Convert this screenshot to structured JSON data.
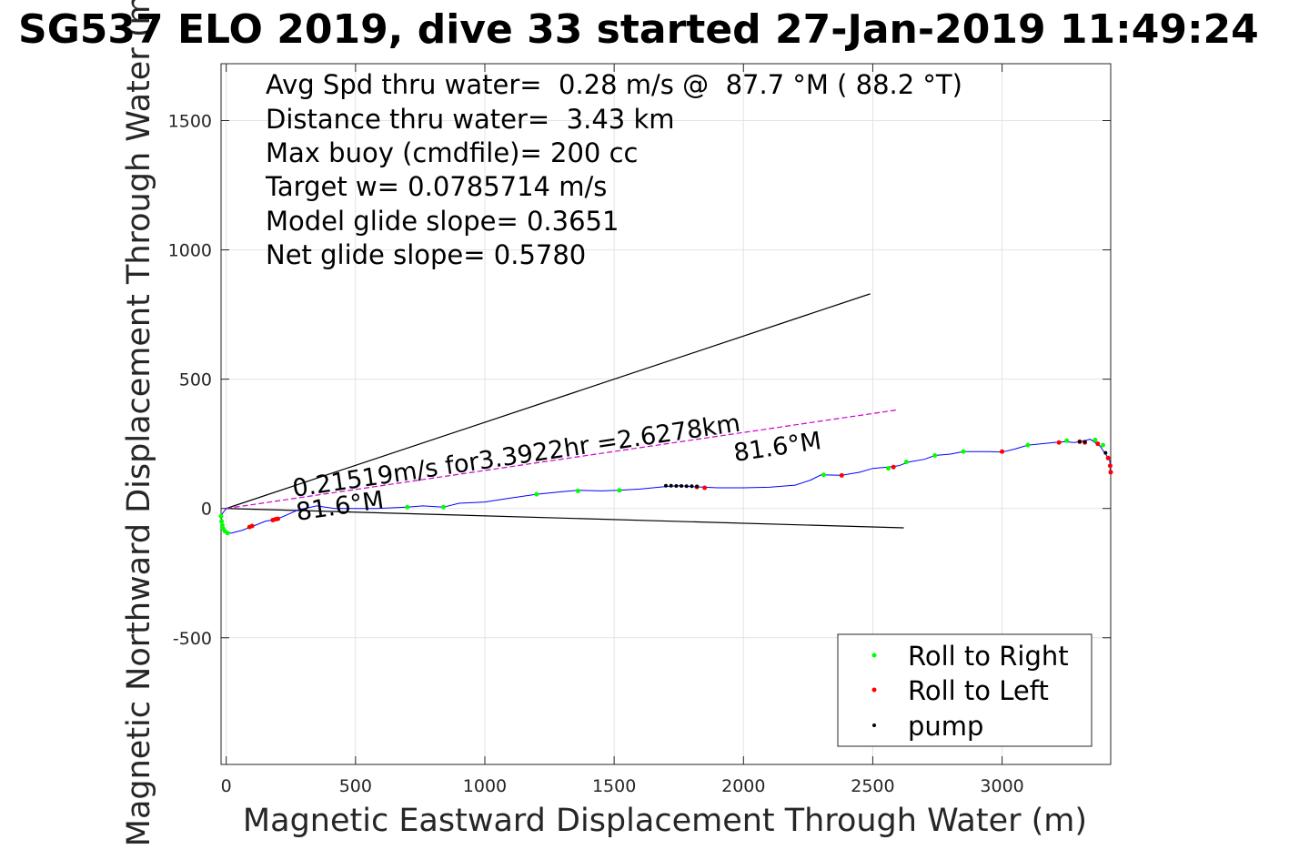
{
  "chart_data": {
    "type": "scatter",
    "title": "SG537 ELO 2019, dive 33 started 27-Jan-2019 11:49:24",
    "xlabel": "Magnetic Eastward Displacement Through Water (m)",
    "ylabel": "Magnetic Northward Displacement Through Water (m)",
    "xlim": [
      -20,
      3420
    ],
    "ylim": [
      -990,
      1720
    ],
    "xticks": [
      0,
      500,
      1000,
      1500,
      2000,
      2500,
      3000
    ],
    "yticks": [
      -500,
      0,
      500,
      1000,
      1500
    ],
    "grid": true,
    "info_lines": [
      "Avg Spd thru water=  0.28 m/s @  87.7 °M ( 88.2 °T)",
      "Distance thru water=  3.43 km",
      "Max buoy (cmdfile)= 200 cc",
      "Target w= 0.0785714 m/s",
      "Model glide slope= 0.3651",
      "Net glide slope= 0.5780"
    ],
    "annotations": {
      "current_label": "0.21519m/s for3.3922hr =2.6278km",
      "heading_label_1": "81.6°M",
      "heading_label_2": "81.6°M"
    },
    "lines": [
      {
        "role": "heading-wedge-upper",
        "color": "#000000",
        "x": [
          0,
          2490
        ],
        "y": [
          0,
          830
        ]
      },
      {
        "role": "heading-wedge-lower",
        "color": "#000000",
        "x": [
          0,
          2620
        ],
        "y": [
          0,
          -75
        ]
      },
      {
        "role": "current-vector",
        "color": "#cc00cc",
        "x": [
          0,
          2600
        ],
        "y": [
          0,
          382
        ]
      }
    ],
    "track": {
      "color": "#0000ff",
      "x": [
        0,
        -15,
        -20,
        -12,
        0,
        20,
        60,
        100,
        150,
        200,
        280,
        350,
        420,
        500,
        580,
        700,
        760,
        840,
        900,
        1000,
        1100,
        1200,
        1300,
        1360,
        1450,
        1520,
        1600,
        1700,
        1750,
        1800,
        1850,
        1900,
        2000,
        2100,
        2200,
        2260,
        2300,
        2380,
        2450,
        2500,
        2560,
        2600,
        2640,
        2700,
        2740,
        2800,
        2850,
        2950,
        3000,
        3050,
        3100,
        3150,
        3200,
        3240,
        3280,
        3320,
        3340,
        3360,
        3380,
        3400,
        3415,
        3420,
        3415
      ],
      "y": [
        0,
        -20,
        -50,
        -80,
        -95,
        -95,
        -85,
        -70,
        -50,
        -40,
        -5,
        10,
        0,
        0,
        0,
        5,
        10,
        5,
        20,
        25,
        40,
        55,
        65,
        70,
        68,
        70,
        75,
        85,
        88,
        85,
        82,
        80,
        80,
        82,
        90,
        110,
        130,
        128,
        140,
        155,
        160,
        165,
        180,
        190,
        205,
        210,
        220,
        220,
        218,
        230,
        245,
        250,
        255,
        258,
        255,
        262,
        268,
        255,
        240,
        210,
        190,
        160,
        140
      ]
    },
    "series": [
      {
        "name": "Roll to Right",
        "color": "#00ff00",
        "x": [
          -20,
          -18,
          -15,
          -12,
          -5,
          5,
          700,
          840,
          1200,
          1360,
          1520,
          2310,
          2560,
          2630,
          2740,
          2850,
          3100,
          3250,
          3360,
          3390
        ],
        "y": [
          -30,
          -50,
          -65,
          -78,
          -88,
          -95,
          5,
          5,
          55,
          68,
          70,
          130,
          155,
          180,
          205,
          220,
          245,
          262,
          265,
          245
        ]
      },
      {
        "name": "Roll to Left",
        "color": "#ff0000",
        "x": [
          90,
          100,
          180,
          190,
          200,
          1820,
          1850,
          2380,
          2580,
          3000,
          3220,
          3300,
          3320,
          3370,
          3410,
          3418,
          3420
        ],
        "y": [
          -72,
          -68,
          -45,
          -42,
          -40,
          83,
          80,
          128,
          160,
          220,
          255,
          258,
          255,
          250,
          195,
          165,
          140
        ]
      },
      {
        "name": "pump",
        "color": "#000000",
        "x": [
          1700,
          1720,
          1740,
          1760,
          1780,
          1800,
          1820,
          3300,
          3320,
          3400
        ],
        "y": [
          88,
          88,
          87,
          87,
          86,
          86,
          85,
          258,
          258,
          215
        ]
      }
    ],
    "legend": {
      "placement": "bottom-right",
      "entries": [
        "Roll to Right",
        "Roll to Left",
        "pump"
      ]
    }
  }
}
